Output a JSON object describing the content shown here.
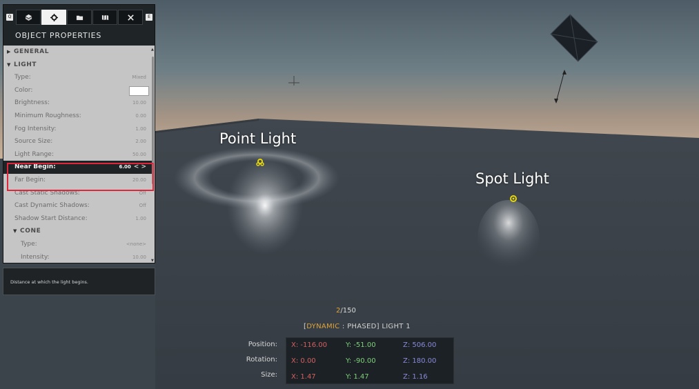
{
  "panel": {
    "tab_key_left": "Q",
    "tab_key_right": "E",
    "tabs": [
      {
        "name": "library-icon"
      },
      {
        "name": "gear-icon",
        "active": true
      },
      {
        "name": "folder-icon"
      },
      {
        "name": "map-icon"
      },
      {
        "name": "tools-icon"
      }
    ],
    "title": "OBJECT PROPERTIES",
    "rows": [
      {
        "type": "section",
        "label": "GENERAL",
        "arrow": "▶"
      },
      {
        "type": "section",
        "label": "LIGHT",
        "arrow": "▼"
      },
      {
        "type": "prop",
        "label": "Type:",
        "value": "Mixed"
      },
      {
        "type": "color",
        "label": "Color:",
        "value": ""
      },
      {
        "type": "prop",
        "label": "Brightness:",
        "value": "10.00"
      },
      {
        "type": "prop",
        "label": "Minimum Roughness:",
        "value": "0.00"
      },
      {
        "type": "prop",
        "label": "Fog Intensity:",
        "value": "1.00"
      },
      {
        "type": "prop",
        "label": "Source Size:",
        "value": "2.00"
      },
      {
        "type": "prop",
        "label": "Light Range:",
        "value": "50.00"
      },
      {
        "type": "selected",
        "label": "Near Begin:",
        "value": "6.00"
      },
      {
        "type": "prop",
        "label": "Far Begin:",
        "value": "20.00"
      },
      {
        "type": "prop",
        "label": "Cast Static Shadows:",
        "value": "Off"
      },
      {
        "type": "prop",
        "label": "Cast Dynamic Shadows:",
        "value": "Off"
      },
      {
        "type": "prop",
        "label": "Shadow Start Distance:",
        "value": "1.00"
      },
      {
        "type": "subsection",
        "label": "CONE",
        "arrow": "▼"
      },
      {
        "type": "indent",
        "label": "Type:",
        "value": "<none>"
      },
      {
        "type": "indent",
        "label": "Intensity:",
        "value": "10.00"
      }
    ],
    "selected_chevrons": "< >"
  },
  "description": "Distance at which the light begins.",
  "scene": {
    "point_light_label": "Point Light",
    "spot_light_label": "Spot Light"
  },
  "status": {
    "current": "2",
    "total": "/150",
    "name_open": "[",
    "name_dynamic": "DYNAMIC",
    "name_rest": " : PHASED] LIGHT 1"
  },
  "transform": {
    "position_label": "Position:",
    "rotation_label": "Rotation:",
    "size_label": "Size:",
    "position": {
      "x": "X: -116.00",
      "y": "Y: -51.00",
      "z": "Z: 506.00"
    },
    "rotation": {
      "x": "X: 0.00",
      "y": "Y: -90.00",
      "z": "Z: 180.00"
    },
    "size": {
      "x": "X: 1.47",
      "y": "Y: 1.47",
      "z": "Z: 1.16"
    }
  },
  "colors": {
    "accent": "#e0a43a",
    "highlight": "#e0263a",
    "axis_x": "#d36060",
    "axis_y": "#7fd17a",
    "axis_z": "#8a8ad8"
  }
}
